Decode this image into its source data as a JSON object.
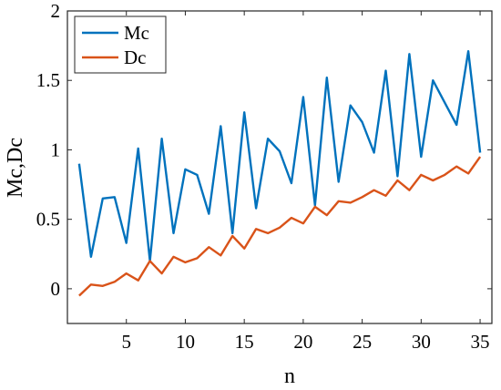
{
  "chart_data": {
    "type": "line",
    "xlabel": "n",
    "ylabel": "Mc,Dc",
    "xlim": [
      0,
      36
    ],
    "ylim": [
      -0.25,
      2
    ],
    "xticks": [
      5,
      10,
      15,
      20,
      25,
      30,
      35
    ],
    "yticks": [
      0,
      0.5,
      1,
      1.5,
      2
    ],
    "grid": false,
    "legend_position": "top-left",
    "x": [
      1,
      2,
      3,
      4,
      5,
      6,
      7,
      8,
      9,
      10,
      11,
      12,
      13,
      14,
      15,
      16,
      17,
      18,
      19,
      20,
      21,
      22,
      23,
      24,
      25,
      26,
      27,
      28,
      29,
      30,
      31,
      32,
      33,
      34,
      35
    ],
    "series": [
      {
        "name": "Mc",
        "color": "#0072BD",
        "values": [
          0.9,
          0.23,
          0.65,
          0.66,
          0.33,
          1.01,
          0.2,
          1.08,
          0.4,
          0.86,
          0.82,
          0.54,
          1.17,
          0.4,
          1.27,
          0.58,
          1.08,
          0.99,
          0.76,
          1.38,
          0.6,
          1.52,
          0.77,
          1.32,
          1.2,
          0.98,
          1.57,
          0.81,
          1.69,
          0.95,
          1.5,
          1.34,
          1.18,
          1.71,
          0.98
        ]
      },
      {
        "name": "Dc",
        "color": "#D95319",
        "values": [
          -0.05,
          0.03,
          0.02,
          0.05,
          0.11,
          0.06,
          0.2,
          0.11,
          0.23,
          0.19,
          0.22,
          0.3,
          0.24,
          0.38,
          0.29,
          0.43,
          0.4,
          0.44,
          0.51,
          0.47,
          0.59,
          0.53,
          0.63,
          0.62,
          0.66,
          0.71,
          0.67,
          0.78,
          0.71,
          0.82,
          0.78,
          0.82,
          0.88,
          0.83,
          0.95
        ]
      }
    ]
  }
}
